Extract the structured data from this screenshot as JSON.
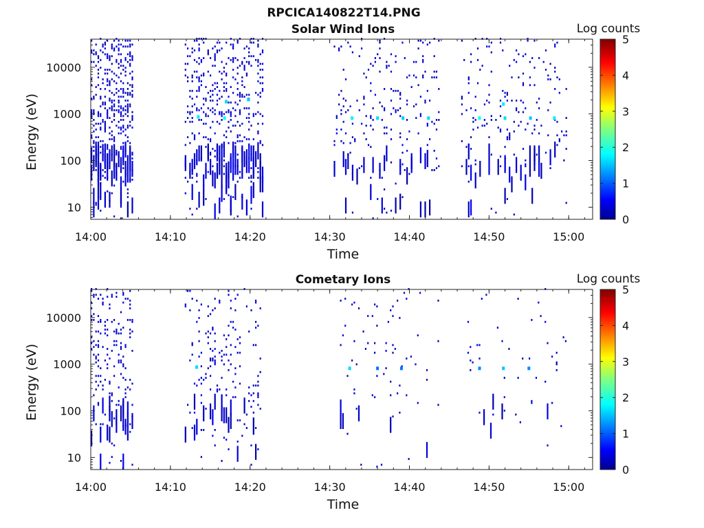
{
  "figure_title": "RPCICA140822T14.PNG",
  "chart_data": [
    {
      "type": "heatmap",
      "title": "Solar Wind Ions",
      "xlabel": "Time",
      "ylabel": "Energy (eV)",
      "xlim": [
        "14:00",
        "15:03"
      ],
      "ylim": [
        5.5,
        40000
      ],
      "yscale": "log",
      "x_ticks": [
        "14:00",
        "14:10",
        "14:20",
        "14:30",
        "14:40",
        "14:50",
        "15:00"
      ],
      "y_ticks": [
        "10",
        "100",
        "1000",
        "10000"
      ],
      "colorbar": {
        "label": "Log counts",
        "min": 0,
        "max": 5,
        "ticks": [
          "0",
          "1",
          "2",
          "3",
          "4",
          "5"
        ]
      },
      "activity_intervals": [
        {
          "start": "14:00",
          "end": "14:05.3",
          "density": 0.55
        },
        {
          "start": "14:11.8",
          "end": "14:21.5",
          "density": 0.33
        },
        {
          "start": "14:30.5",
          "end": "14:43.8",
          "density": 0.12
        },
        {
          "start": "14:46.5",
          "end": "14:59.8",
          "density": 0.1
        }
      ],
      "hot_spots": [
        {
          "time": "14:13.5",
          "energy": 850,
          "level": 1.8
        },
        {
          "time": "14:16.8",
          "energy": 800,
          "level": 1.9
        },
        {
          "time": "14:17.0",
          "energy": 1800,
          "level": 1.7
        },
        {
          "time": "14:19.8",
          "energy": 2000,
          "level": 1.6
        },
        {
          "time": "14:32.8",
          "energy": 800,
          "level": 1.8
        },
        {
          "time": "14:36.0",
          "energy": 800,
          "level": 1.7
        },
        {
          "time": "14:39.2",
          "energy": 800,
          "level": 1.6
        },
        {
          "time": "14:42.4",
          "energy": 800,
          "level": 1.7
        },
        {
          "time": "14:48.8",
          "energy": 800,
          "level": 1.9
        },
        {
          "time": "14:51.8",
          "energy": 1600,
          "level": 1.8
        },
        {
          "time": "14:52.0",
          "energy": 800,
          "level": 1.7
        },
        {
          "time": "14:55.2",
          "energy": 800,
          "level": 1.6
        },
        {
          "time": "14:58.2",
          "energy": 800,
          "level": 1.8
        }
      ]
    },
    {
      "type": "heatmap",
      "title": "Cometary Ions",
      "xlabel": "Time",
      "ylabel": "Energy (eV)",
      "xlim": [
        "14:00",
        "15:03"
      ],
      "ylim": [
        5.5,
        40000
      ],
      "yscale": "log",
      "x_ticks": [
        "14:00",
        "14:10",
        "14:20",
        "14:30",
        "14:40",
        "14:50",
        "15:00"
      ],
      "y_ticks": [
        "10",
        "100",
        "1000",
        "10000"
      ],
      "colorbar": {
        "label": "Log counts",
        "min": 0,
        "max": 5,
        "ticks": [
          "0",
          "1",
          "2",
          "3",
          "4",
          "5"
        ]
      },
      "activity_intervals": [
        {
          "start": "14:00",
          "end": "14:05.3",
          "density": 0.25
        },
        {
          "start": "14:11.8",
          "end": "14:21.3",
          "density": 0.13
        },
        {
          "start": "14:31.0",
          "end": "14:43.8",
          "density": 0.04
        },
        {
          "start": "14:47.0",
          "end": "14:59.8",
          "density": 0.03
        }
      ],
      "hot_spots": [
        {
          "time": "14:13.3",
          "energy": 850,
          "level": 1.7
        },
        {
          "time": "14:32.5",
          "energy": 800,
          "level": 1.7
        },
        {
          "time": "14:36.0",
          "energy": 800,
          "level": 1.2
        },
        {
          "time": "14:39.0",
          "energy": 800,
          "level": 1.2
        },
        {
          "time": "14:48.8",
          "energy": 800,
          "level": 1.3
        },
        {
          "time": "14:51.8",
          "energy": 800,
          "level": 1.6
        },
        {
          "time": "14:55.0",
          "energy": 800,
          "level": 1.3
        }
      ]
    }
  ]
}
